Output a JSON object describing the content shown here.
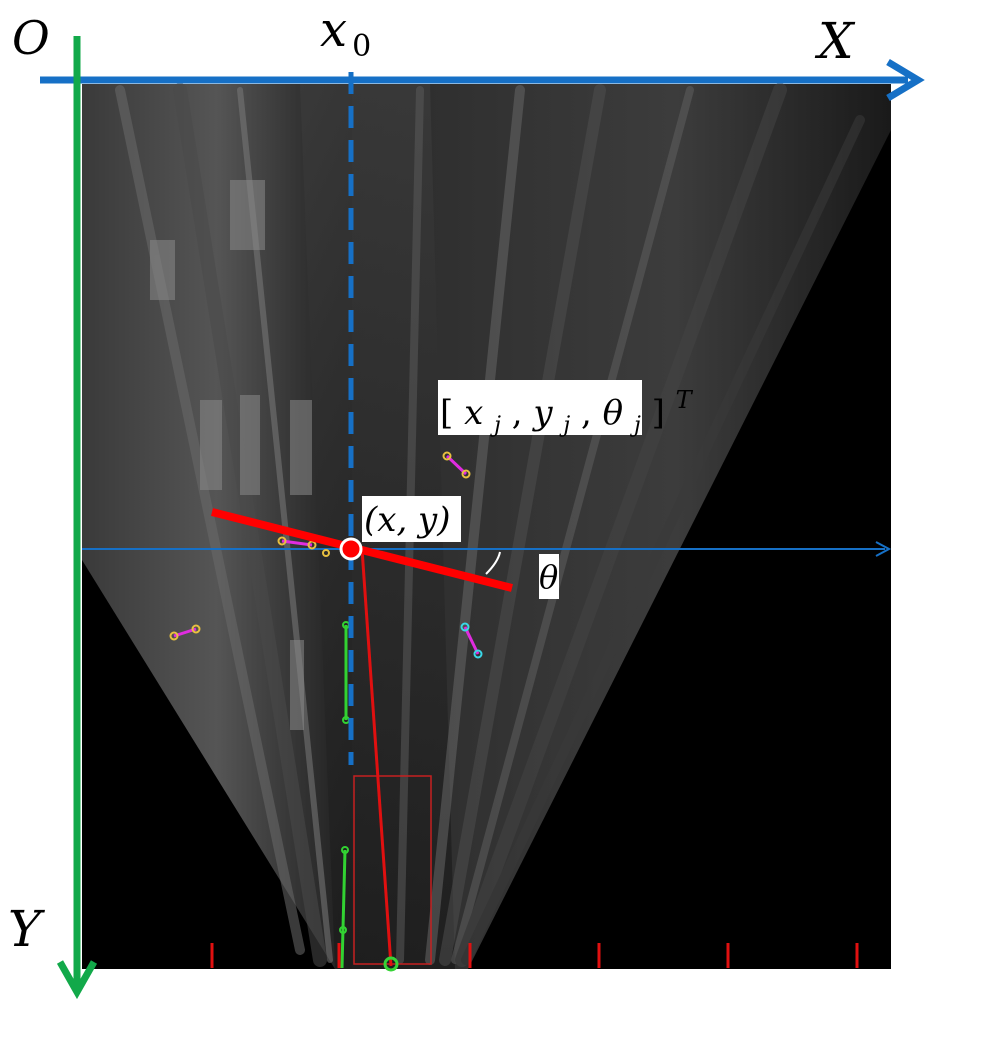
{
  "axes": {
    "origin_label": "O",
    "x_axis_label": "X",
    "y_axis_label": "Y",
    "x_axis_color": "#1670c6",
    "y_axis_color": "#12a94a"
  },
  "reference_line": {
    "label_main": "x",
    "label_sub": "0",
    "color": "#1670c6"
  },
  "feature": {
    "point_label": "(x, y)",
    "angle_label": "θ",
    "segment_color": "#ff0000",
    "point_fill": "#ff0000",
    "point_stroke": "#ffffff"
  },
  "state_label": {
    "open_bracket": "[",
    "x_main": "x",
    "x_sub": "j",
    "y_main": "y",
    "y_sub": "j",
    "theta_main": "θ",
    "theta_sub": "j",
    "close_bracket": "]",
    "superscript": "T",
    "separator": ", "
  },
  "colors": {
    "image_background": "#000000",
    "horizontal_ref": "#1670c6",
    "vehicle_box": "#c62020",
    "tick_marks": "#e01010"
  }
}
